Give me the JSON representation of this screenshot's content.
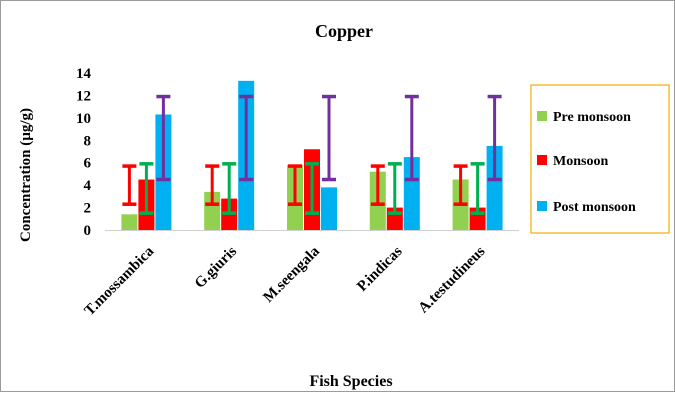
{
  "chart_data": {
    "type": "bar",
    "title": "Copper",
    "xlabel": "Fish Species",
    "ylabel": "Concentration (µg/g)",
    "ylim": [
      0,
      14
    ],
    "yticks": [
      "0",
      "2",
      "4",
      "6",
      "8",
      "10",
      "12",
      "14"
    ],
    "categories": [
      "T.mossambica",
      "G.giuris",
      "M.seengala",
      "P.indicas",
      "A.testudineus"
    ],
    "series": [
      {
        "name": "Pre monsoon",
        "color": "#92d050",
        "values": [
          1.4,
          3.4,
          5.8,
          5.2,
          4.5
        ]
      },
      {
        "name": "Monsoon",
        "color": "#ff0000",
        "values": [
          4.5,
          2.8,
          7.2,
          2.0,
          2.0
        ]
      },
      {
        "name": "Post monsoon",
        "color": "#00b0f0",
        "values": [
          10.3,
          13.3,
          3.8,
          6.5,
          7.5
        ]
      }
    ],
    "error_bars": [
      {
        "series": "Pre monsoon",
        "color": "#ff0000",
        "low": [
          2.3,
          2.3,
          2.3,
          2.3,
          2.3
        ],
        "high": [
          5.7,
          5.7,
          5.7,
          5.7,
          5.7
        ]
      },
      {
        "series": "Monsoon",
        "color": "#00b050",
        "low": [
          1.5,
          1.5,
          1.5,
          1.5,
          1.5
        ],
        "high": [
          5.9,
          5.9,
          5.9,
          5.9,
          5.9
        ]
      },
      {
        "series": "Post monsoon",
        "color": "#7030a0",
        "low": [
          4.5,
          4.5,
          4.5,
          4.5,
          4.5
        ],
        "high": [
          11.9,
          11.9,
          11.9,
          11.9,
          11.9
        ]
      }
    ],
    "legend_position": "right",
    "legend_border_color": "#f0b000",
    "grid": false
  }
}
